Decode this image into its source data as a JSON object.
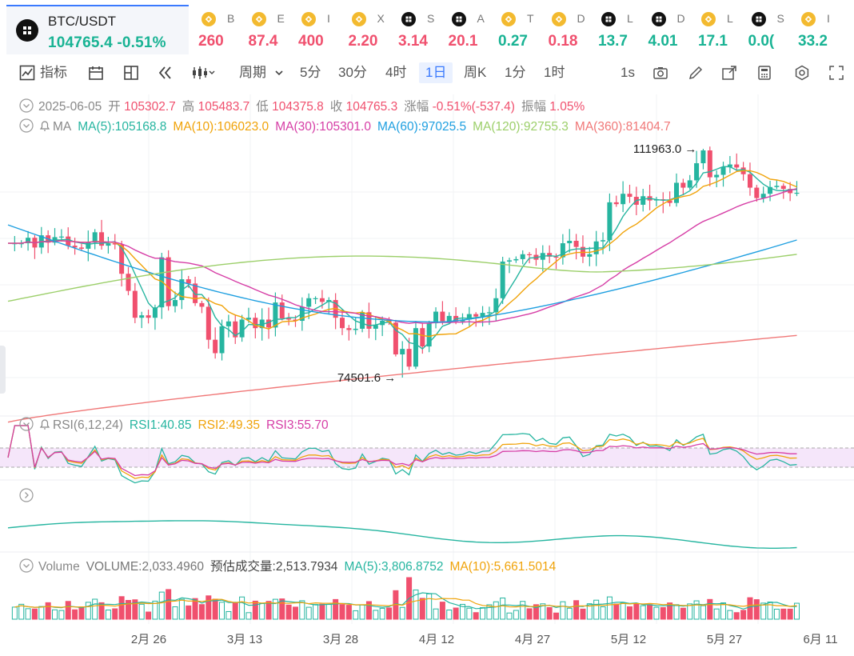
{
  "tickers": {
    "main": {
      "symbol": "BTC/USDT",
      "price": "104765.4",
      "change": "-0.51%"
    },
    "others": [
      {
        "name": "B",
        "price": "260",
        "color": "#f0506e",
        "icon": "bnb-icon"
      },
      {
        "name": "E",
        "price": "87.4",
        "color": "#f0506e",
        "icon": "bnb-icon"
      },
      {
        "name": "I",
        "price": "400",
        "color": "#f0506e",
        "icon": "bnb-icon"
      },
      {
        "name": "X",
        "price": "2.20",
        "color": "#f0506e",
        "icon": "bnb-icon"
      },
      {
        "name": "S",
        "price": "3.14",
        "color": "#f0506e",
        "icon": "cmc-icon"
      },
      {
        "name": "A",
        "price": "20.1",
        "color": "#f0506e",
        "icon": "cmc-icon"
      },
      {
        "name": "T",
        "price": "0.27",
        "color": "#19b394",
        "icon": "bnb-icon"
      },
      {
        "name": "D",
        "price": "0.18",
        "color": "#f0506e",
        "icon": "bnb-icon"
      },
      {
        "name": "L",
        "price": "13.7",
        "color": "#19b394",
        "icon": "cmc-icon"
      },
      {
        "name": "D",
        "price": "4.01",
        "color": "#19b394",
        "icon": "cmc-icon"
      },
      {
        "name": "L",
        "price": "17.1",
        "color": "#19b394",
        "icon": "bnb-icon"
      },
      {
        "name": "S",
        "price": "0.0(",
        "color": "#19b394",
        "icon": "cmc-icon"
      },
      {
        "name": "I",
        "price": "33.2",
        "color": "#19b394",
        "icon": "bnb-icon"
      }
    ]
  },
  "toolbar": {
    "indicators": "指标",
    "period": "周期",
    "intervals": [
      "5分",
      "30分",
      "4时",
      "1日",
      "周K",
      "1分",
      "1时"
    ],
    "active_interval": "1日",
    "refresh": "1s",
    "icons": [
      "indicator-icon",
      "calendar-icon",
      "layout-icon",
      "replay-icon",
      "candle-type-icon",
      "camera-icon",
      "draw-icon",
      "export-icon",
      "calculator-icon",
      "settings-icon",
      "fullscreen-icon"
    ]
  },
  "ohlc": {
    "date": "2025-06-05",
    "open_label": "开",
    "open": "105302.7",
    "high_label": "高",
    "high": "105483.7",
    "low_label": "低",
    "low": "104375.8",
    "close_label": "收",
    "close": "104765.3",
    "chg_label": "涨幅",
    "chg": "-0.51%(-537.4)",
    "amp_label": "振幅",
    "amp": "1.05%"
  },
  "ma_legend": {
    "title": "MA",
    "items": [
      {
        "label": "MA(5):105168.8",
        "color": "#26b5a0"
      },
      {
        "label": "MA(10):106023.0",
        "color": "#f0a30a"
      },
      {
        "label": "MA(30):105301.0",
        "color": "#d63ea6"
      },
      {
        "label": "MA(60):97025.5",
        "color": "#1e9fe0"
      },
      {
        "label": "MA(120):92755.3",
        "color": "#9ccf6a"
      },
      {
        "label": "MA(360):81404.7",
        "color": "#f07878"
      }
    ]
  },
  "rsi_legend": {
    "title": "RSI(6,12,24)",
    "items": [
      {
        "label": "RSI1:40.85",
        "color": "#26b5a0"
      },
      {
        "label": "RSI2:49.35",
        "color": "#f0a30a"
      },
      {
        "label": "RSI3:55.70",
        "color": "#d63ea6"
      }
    ]
  },
  "vol_legend": {
    "title": "Volume",
    "items": [
      {
        "label": "VOLUME:2,033.4960",
        "color": "#777777"
      },
      {
        "label": "预估成交量:2,513.7934",
        "color": "#444444"
      },
      {
        "label": "MA(5):3,806.8752",
        "color": "#26b5a0"
      },
      {
        "label": "MA(10):5,661.5014",
        "color": "#f0a30a"
      }
    ]
  },
  "colors": {
    "up": "#26b5a0",
    "down": "#f0506e",
    "accent": "#3a7afe"
  },
  "chart_data": {
    "type": "candlestick",
    "title": "BTC/USDT",
    "x_tick_labels": [
      "2月 26",
      "3月 13",
      "3月 28",
      "4月 12",
      "4月 27",
      "5月 12",
      "5月 27",
      "6月 11"
    ],
    "x_range": [
      "2025-02-07",
      "2025-06-11"
    ],
    "y_range": [
      72000,
      117500
    ],
    "annotations": [
      {
        "text": "111963.0",
        "date": "2025-05-22",
        "value": 111963.0
      },
      {
        "text": "74501.6",
        "date": "2025-04-07",
        "value": 74501.6
      }
    ],
    "closes": [
      [
        "2025-02-07",
        96500
      ],
      [
        "2025-02-08",
        96500
      ],
      [
        "2025-02-09",
        96500
      ],
      [
        "2025-02-10",
        97400
      ],
      [
        "2025-02-11",
        95800
      ],
      [
        "2025-02-12",
        97800
      ],
      [
        "2025-02-13",
        96600
      ],
      [
        "2025-02-14",
        97500
      ],
      [
        "2025-02-15",
        97600
      ],
      [
        "2025-02-16",
        96100
      ],
      [
        "2025-02-17",
        95800
      ],
      [
        "2025-02-18",
        95600
      ],
      [
        "2025-02-19",
        96600
      ],
      [
        "2025-02-20",
        98300
      ],
      [
        "2025-02-21",
        96100
      ],
      [
        "2025-02-22",
        96500
      ],
      [
        "2025-02-23",
        96300
      ],
      [
        "2025-02-24",
        91500
      ],
      [
        "2025-02-25",
        88700
      ],
      [
        "2025-02-26",
        84300
      ],
      [
        "2025-02-27",
        84700
      ],
      [
        "2025-02-28",
        84300
      ],
      [
        "2025-03-01",
        86000
      ],
      [
        "2025-03-02",
        94200
      ],
      [
        "2025-03-03",
        86200
      ],
      [
        "2025-03-04",
        87200
      ],
      [
        "2025-03-05",
        90600
      ],
      [
        "2025-03-06",
        89900
      ],
      [
        "2025-03-07",
        86700
      ],
      [
        "2025-03-08",
        86100
      ],
      [
        "2025-03-09",
        80700
      ],
      [
        "2025-03-10",
        78500
      ],
      [
        "2025-03-11",
        82900
      ],
      [
        "2025-03-12",
        83700
      ],
      [
        "2025-03-13",
        81100
      ],
      [
        "2025-03-14",
        84000
      ],
      [
        "2025-03-15",
        84300
      ],
      [
        "2025-03-16",
        82600
      ],
      [
        "2025-03-17",
        84000
      ],
      [
        "2025-03-18",
        82700
      ],
      [
        "2025-03-19",
        86800
      ],
      [
        "2025-03-20",
        84200
      ],
      [
        "2025-03-21",
        84000
      ],
      [
        "2025-03-22",
        83800
      ],
      [
        "2025-03-23",
        86100
      ],
      [
        "2025-03-24",
        87500
      ],
      [
        "2025-03-25",
        87500
      ],
      [
        "2025-03-26",
        86900
      ],
      [
        "2025-03-27",
        87200
      ],
      [
        "2025-03-28",
        84300
      ],
      [
        "2025-03-29",
        82600
      ],
      [
        "2025-03-30",
        82300
      ],
      [
        "2025-03-31",
        82500
      ],
      [
        "2025-04-01",
        85200
      ],
      [
        "2025-04-02",
        82500
      ],
      [
        "2025-04-03",
        83100
      ],
      [
        "2025-04-04",
        83800
      ],
      [
        "2025-04-05",
        83500
      ],
      [
        "2025-04-06",
        78300
      ],
      [
        "2025-04-07",
        79200
      ],
      [
        "2025-04-08",
        76300
      ],
      [
        "2025-04-09",
        82600
      ],
      [
        "2025-04-10",
        79600
      ],
      [
        "2025-04-11",
        83400
      ],
      [
        "2025-04-12",
        85300
      ],
      [
        "2025-04-13",
        83700
      ],
      [
        "2025-04-14",
        84600
      ],
      [
        "2025-04-15",
        83700
      ],
      [
        "2025-04-16",
        84000
      ],
      [
        "2025-04-17",
        84900
      ],
      [
        "2025-04-18",
        84500
      ],
      [
        "2025-04-19",
        85100
      ],
      [
        "2025-04-20",
        85200
      ],
      [
        "2025-04-21",
        87500
      ],
      [
        "2025-04-22",
        93500
      ],
      [
        "2025-04-23",
        93700
      ],
      [
        "2025-04-24",
        93900
      ],
      [
        "2025-04-25",
        94700
      ],
      [
        "2025-04-26",
        94600
      ],
      [
        "2025-04-27",
        93800
      ],
      [
        "2025-04-28",
        94900
      ],
      [
        "2025-04-29",
        94300
      ],
      [
        "2025-04-30",
        94200
      ],
      [
        "2025-05-01",
        96500
      ],
      [
        "2025-05-02",
        96900
      ],
      [
        "2025-05-03",
        95900
      ],
      [
        "2025-05-04",
        94300
      ],
      [
        "2025-05-05",
        94700
      ],
      [
        "2025-05-06",
        96800
      ],
      [
        "2025-05-07",
        97000
      ],
      [
        "2025-05-08",
        103200
      ],
      [
        "2025-05-09",
        102900
      ],
      [
        "2025-05-10",
        104600
      ],
      [
        "2025-05-11",
        104100
      ],
      [
        "2025-05-12",
        102800
      ],
      [
        "2025-05-13",
        104200
      ],
      [
        "2025-05-14",
        103500
      ],
      [
        "2025-05-15",
        103700
      ],
      [
        "2025-05-16",
        103500
      ],
      [
        "2025-05-17",
        103100
      ],
      [
        "2025-05-18",
        106400
      ],
      [
        "2025-05-19",
        105600
      ],
      [
        "2025-05-20",
        106800
      ],
      [
        "2025-05-21",
        109600
      ],
      [
        "2025-05-22",
        111700
      ],
      [
        "2025-05-23",
        107300
      ],
      [
        "2025-05-24",
        107700
      ],
      [
        "2025-05-25",
        109000
      ],
      [
        "2025-05-26",
        109400
      ],
      [
        "2025-05-27",
        108900
      ],
      [
        "2025-05-28",
        107800
      ],
      [
        "2025-05-29",
        105600
      ],
      [
        "2025-05-30",
        103900
      ],
      [
        "2025-05-31",
        104600
      ],
      [
        "2025-06-01",
        105700
      ],
      [
        "2025-06-02",
        105900
      ],
      [
        "2025-06-03",
        105400
      ],
      [
        "2025-06-04",
        104700
      ],
      [
        "2025-06-05",
        104765.3
      ]
    ]
  }
}
